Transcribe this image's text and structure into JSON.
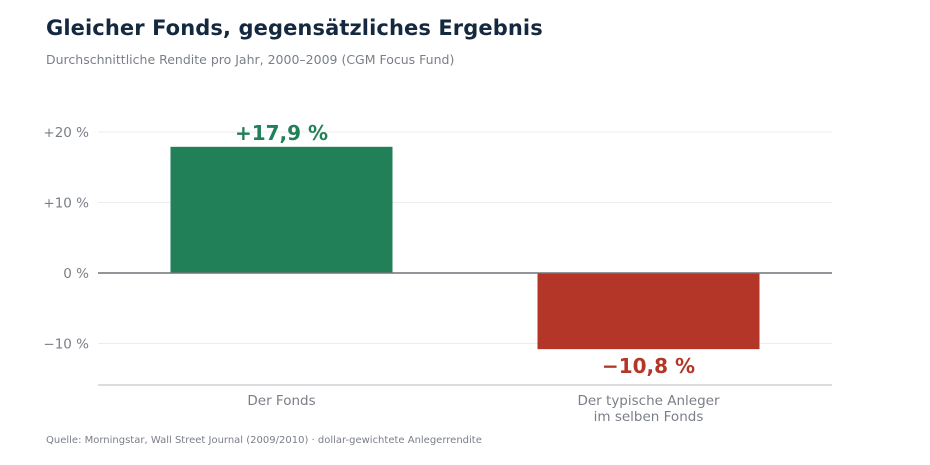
{
  "header": {
    "title": "Gleicher Fonds, gegensätzliches Ergebnis",
    "subtitle": "Durchschnittliche Rendite pro Jahr, 2000–2009 (CGM Focus Fund)"
  },
  "footer": {
    "source": "Quelle: Morningstar, Wall Street Journal (2009/2010) · dollar-gewichtete Anlegerrendite"
  },
  "colors": {
    "positive": "#228058",
    "negative": "#b33628",
    "axis": "#6f7379",
    "grid": "#ececec",
    "text": "#7a7f87"
  },
  "chart_data": {
    "type": "bar",
    "title": "Gleicher Fonds, gegensätzliches Ergebnis",
    "subtitle": "Durchschnittliche Rendite pro Jahr, 2000–2009 (CGM Focus Fund)",
    "xlabel": "",
    "ylabel": "",
    "categories": [
      [
        "Der Fonds"
      ],
      [
        "Der typische Anleger",
        "im selben Fonds"
      ]
    ],
    "values": [
      17.9,
      -10.8
    ],
    "value_labels": [
      "+17,9 %",
      "−10,8 %"
    ],
    "ylim": [
      -16,
      20
    ],
    "yticks": [
      20,
      10,
      0,
      -10
    ],
    "ytick_labels": [
      "+20 %",
      "+10 %",
      "0 %",
      "−10 %"
    ],
    "grid": true,
    "legend": "none"
  }
}
